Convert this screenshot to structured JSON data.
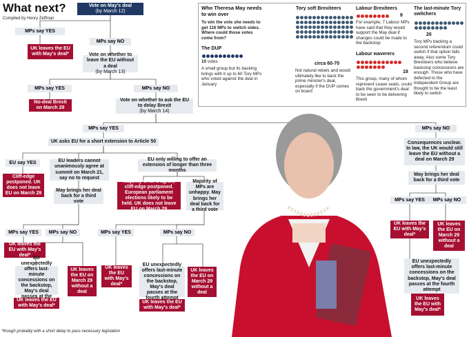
{
  "header": {
    "title": "What next?",
    "credit": "Compiled by Henry Zeffman"
  },
  "footnote": "*though probably with a short delay to pass necessary legislation",
  "flow": {
    "vote1": {
      "title": "Vote on May's deal",
      "sub": "(by March 12)"
    },
    "mps_yes_1": "MPs say YES",
    "mps_no_1": "MPs say NO",
    "leave_deal_1": "UK leaves the EU with May's deal*",
    "vote2": {
      "title": "Vote on whether to leave the EU without a deal",
      "sub": "(by March 13)"
    },
    "mps_yes_2": "MPs say YES",
    "mps_no_2": "MPs say NO",
    "no_deal": "No-deal Brexit on March 29",
    "vote3": {
      "title": "Vote on whether to ask the EU to delay Brexit",
      "sub": "(by March 14)"
    },
    "mps_yes_3": "MPs say YES",
    "mps_no_3": "MPs say NO",
    "ask_extension": "UK asks EU for a short extension to Article 50",
    "eu_yes": "EU say YES",
    "cliff_edge": "Cliff-edge postponed. UK does not leave EU on March 29",
    "eu_leaders": "EU leaders cannot unanimously agree at summit on March 21, say no to request",
    "third_vote_a": "May brings her deal back for a third vote",
    "eu_only": "EU only willing to offer an extension of longer than three months",
    "majority_agree": "Majority of MPs agree, cliff-edge postponed. European parliament elections likely to be held. UK does not leave EU on March 29",
    "majority_unhappy": "Majority of MPs are unhappy. May brings her deal back for a third vote",
    "mps_yes_a": "MPs say YES",
    "mps_no_a": "MPs say NO",
    "leave_deal_a": "UK leaves the EU with May's deal*",
    "unexpected_a": "EU unexpectedly offers last-minute concessions on the backstop, May's deal passes at the fourth attempt",
    "leave_march29_a": "UK leaves the EU on March 29 without a deal",
    "leave_deal_a2": "UK leaves the EU with May's deal*",
    "mps_yes_b": "MPs say YES",
    "mps_no_b": "MPs say NO",
    "leave_deal_b": "UK leaves the EU with May's deal*",
    "unexpected_b": "EU unexpectedly offers last-minute concessions on the backstop, May's deal passes at the fourth attempt",
    "leave_march29_b": "UK leaves the EU on March 29 without a deal",
    "leave_deal_b2": "UK leaves the EU with May's deal*",
    "consequences": "Consequences unclear. In law, the UK would still leave the EU without a deal on March 29",
    "third_vote_c": "May brings her deal back for a third vote",
    "mps_yes_c": "MPs say YES",
    "mps_no_c": "MPs say NO",
    "leave_deal_c": "UK leaves the EU with May's deal*",
    "leave_march29_c": "UK leaves the EU on March 29 without a deal",
    "unexpected_c": "EU unexpectedly offers last-minute concessions on the backstop, May's deal passes at the fourth attempt",
    "leave_deal_c2": "UK leaves the EU with May's deal*"
  },
  "panel": {
    "title": "Who Theresa May needs to win over",
    "intro": "To win the vote she needs to get 116 MPs to switch sides. Where could those votes come from?",
    "dup": {
      "heading": "The DUP",
      "count": "10",
      "count_label": "votes",
      "text": "A small group but its backing brings with it up to 60 Tory MPs who voted against the deal in January"
    },
    "soft": {
      "heading": "Tory soft Brexiteers",
      "count": "circa 60-70",
      "text": "Not natural rebels and would ultimately like to back the prime minister's deal, especially if the DUP comes on board"
    },
    "labour_brexiteers": {
      "heading": "Labour Brexiteers",
      "count": "8",
      "text": "For example, 7 Labour MPs have said that they would support the May deal if changes could be made to the backstop"
    },
    "labour_waverers": {
      "heading": "Labour waverers",
      "count": "18",
      "text": "This group, many of whom represent Leave seats, could back the government's deal to be seen to be delivering Brexit"
    },
    "switchers": {
      "heading": "The last-minute Tory switchers",
      "count": "20",
      "text": "Tory MPs backing a second referendum could switch if that option falls away. Also some Tory Brexiteers who believe backstop concessions are enough. Those who have defected to the Independent Group are thought to be the least likely to switch"
    }
  },
  "colors": {
    "navy": "#1f3864",
    "red": "#a50f32",
    "grey": "#e6eaef",
    "dot_soft": "#3d5a74",
    "dot_red": "#d42a2a",
    "dot_navy": "#1f3864"
  }
}
